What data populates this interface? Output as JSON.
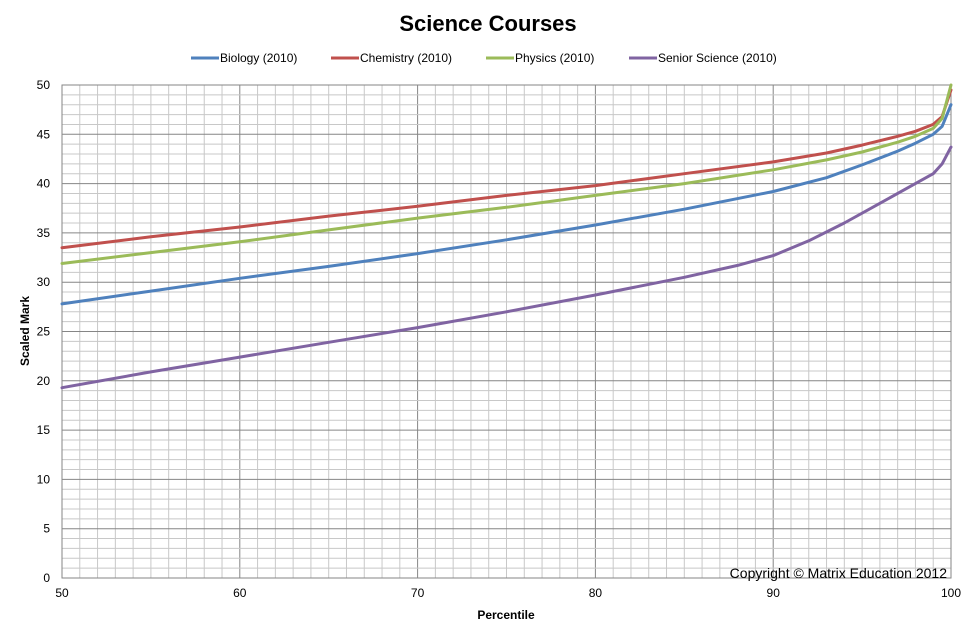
{
  "chart_data": {
    "type": "line",
    "title": "Science Courses",
    "xlabel": "Percentile",
    "ylabel": "Scaled Mark",
    "xlim": [
      50,
      100
    ],
    "ylim": [
      0,
      50
    ],
    "x_ticks": [
      50,
      60,
      70,
      80,
      90,
      100
    ],
    "y_ticks": [
      0,
      5,
      10,
      15,
      20,
      25,
      30,
      35,
      40,
      45,
      50
    ],
    "grid": true,
    "legend_position": "top",
    "annotation": "Copyright © Matrix Education 2012",
    "series": [
      {
        "name": "Biology (2010)",
        "color": "#4F81BD",
        "points": [
          [
            50,
            27.8
          ],
          [
            55,
            29.1
          ],
          [
            60,
            30.4
          ],
          [
            65,
            31.6
          ],
          [
            70,
            32.9
          ],
          [
            75,
            34.3
          ],
          [
            80,
            35.8
          ],
          [
            85,
            37.4
          ],
          [
            90,
            39.2
          ],
          [
            93,
            40.6
          ],
          [
            95,
            41.9
          ],
          [
            97,
            43.3
          ],
          [
            98,
            44.1
          ],
          [
            99,
            45.0
          ],
          [
            99.5,
            45.8
          ],
          [
            100,
            48.0
          ]
        ]
      },
      {
        "name": "Chemistry (2010)",
        "color": "#C0504D",
        "points": [
          [
            50,
            33.5
          ],
          [
            55,
            34.6
          ],
          [
            60,
            35.6
          ],
          [
            65,
            36.7
          ],
          [
            70,
            37.7
          ],
          [
            75,
            38.8
          ],
          [
            80,
            39.8
          ],
          [
            85,
            41.0
          ],
          [
            90,
            42.2
          ],
          [
            93,
            43.1
          ],
          [
            95,
            43.9
          ],
          [
            97,
            44.8
          ],
          [
            98,
            45.3
          ],
          [
            99,
            46.0
          ],
          [
            99.5,
            46.8
          ],
          [
            100,
            49.5
          ]
        ]
      },
      {
        "name": "Physics (2010)",
        "color": "#9BBB59",
        "points": [
          [
            50,
            31.9
          ],
          [
            55,
            33.0
          ],
          [
            60,
            34.1
          ],
          [
            65,
            35.3
          ],
          [
            70,
            36.5
          ],
          [
            75,
            37.6
          ],
          [
            80,
            38.8
          ],
          [
            85,
            40.0
          ],
          [
            90,
            41.4
          ],
          [
            93,
            42.4
          ],
          [
            95,
            43.2
          ],
          [
            97,
            44.2
          ],
          [
            98,
            44.8
          ],
          [
            99,
            45.6
          ],
          [
            99.5,
            46.6
          ],
          [
            100,
            50.0
          ]
        ]
      },
      {
        "name": "Senior Science (2010)",
        "color": "#8064A2",
        "points": [
          [
            50,
            19.3
          ],
          [
            55,
            20.9
          ],
          [
            60,
            22.4
          ],
          [
            65,
            23.9
          ],
          [
            70,
            25.4
          ],
          [
            75,
            27.0
          ],
          [
            80,
            28.7
          ],
          [
            85,
            30.5
          ],
          [
            88,
            31.7
          ],
          [
            90,
            32.7
          ],
          [
            92,
            34.2
          ],
          [
            94,
            36.0
          ],
          [
            96,
            38.0
          ],
          [
            98,
            40.0
          ],
          [
            99,
            41.0
          ],
          [
            99.5,
            42.0
          ],
          [
            100,
            43.7
          ]
        ]
      }
    ]
  }
}
